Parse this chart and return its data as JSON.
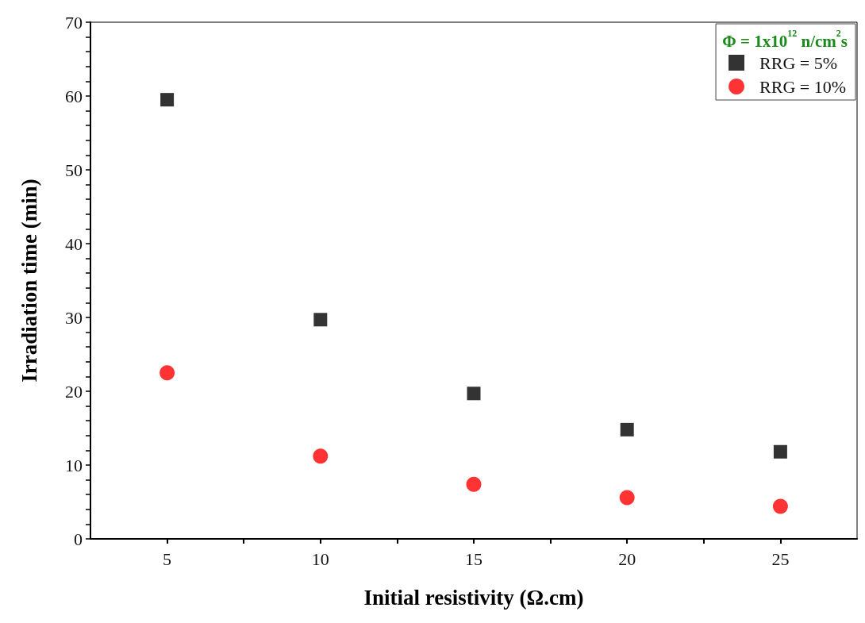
{
  "chart_data": {
    "type": "scatter",
    "xlabel": "Initial resistivity (Ω.cm)",
    "ylabel": "Irradiation time (min)",
    "legend_title": "Φ = 1x10$^{12}$ n/cm$^{2}$s",
    "x": [
      5,
      10,
      15,
      20,
      25
    ],
    "series": [
      {
        "name": "RRG = 5%",
        "color": "#000000",
        "marker": "square",
        "values": [
          59.5,
          29.7,
          19.7,
          14.8,
          11.8
        ]
      },
      {
        "name": "RRG = 10%",
        "color": "#ff0000",
        "marker": "circle",
        "values": [
          22.5,
          11.2,
          7.4,
          5.6,
          4.4
        ]
      }
    ],
    "xlim": [
      2.5,
      27.5
    ],
    "xticks": [
      5,
      {
        "value": 7.5,
        "label": null
      },
      10,
      {
        "value": 12.5,
        "label": null
      },
      15,
      {
        "value": 17.5,
        "label": null
      },
      20,
      {
        "value": 22.5,
        "label": null
      },
      25
    ],
    "ylim": [
      0,
      70
    ],
    "yticks": [
      0,
      {
        "value": 2,
        "label": null
      },
      {
        "value": 4,
        "label": null
      },
      {
        "value": 6,
        "label": null
      },
      {
        "value": 8,
        "label": null
      },
      10,
      {
        "value": 12,
        "label": null
      },
      {
        "value": 14,
        "label": null
      },
      {
        "value": 16,
        "label": null
      },
      {
        "value": 18,
        "label": null
      },
      20,
      {
        "value": 22,
        "label": null
      },
      {
        "value": 24,
        "label": null
      },
      {
        "value": 26,
        "label": null
      },
      {
        "value": 28,
        "label": null
      },
      30,
      {
        "value": 32,
        "label": null
      },
      {
        "value": 34,
        "label": null
      },
      {
        "value": 36,
        "label": null
      },
      {
        "value": 38,
        "label": null
      },
      40,
      {
        "value": 42,
        "label": null
      },
      {
        "value": 44,
        "label": null
      },
      {
        "value": 46,
        "label": null
      },
      {
        "value": 48,
        "label": null
      },
      50,
      {
        "value": 52,
        "label": null
      },
      {
        "value": 54,
        "label": null
      },
      {
        "value": 56,
        "label": null
      },
      {
        "value": 58,
        "label": null
      },
      60,
      {
        "value": 62,
        "label": null
      },
      {
        "value": 64,
        "label": null
      },
      {
        "value": 66,
        "label": null
      },
      {
        "value": 68,
        "label": null
      },
      70
    ],
    "grid": false,
    "legend": "top right"
  }
}
